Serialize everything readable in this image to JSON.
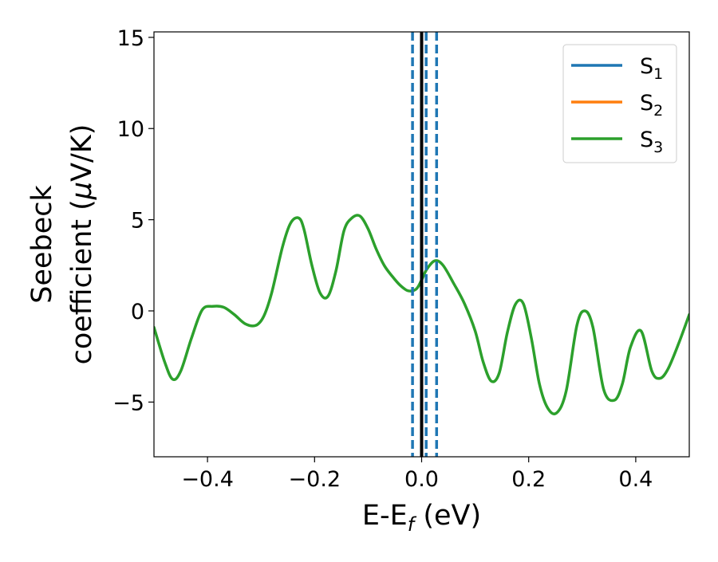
{
  "chart_data": {
    "type": "line",
    "title": "",
    "xlabel": {
      "main": "E-E",
      "sub": "f",
      "rest": " (eV)"
    },
    "ylabel_line1": "Seebeck",
    "ylabel_line2_pre": "coefficient  (",
    "ylabel_line2_mu": "μ",
    "ylabel_line2_post": "V/K)",
    "xlim": [
      -0.5,
      0.5
    ],
    "ylim": [
      -8,
      15.3
    ],
    "xticks": [
      -0.4,
      -0.2,
      0.0,
      0.2,
      0.4
    ],
    "xtick_labels": [
      "−0.4",
      "−0.2",
      "0.0",
      "0.2",
      "0.4"
    ],
    "yticks": [
      -5,
      0,
      5,
      10,
      15
    ],
    "ytick_labels": [
      "−5",
      "0",
      "5",
      "10",
      "15"
    ],
    "grid": false,
    "legend_position": "top-right",
    "series": [
      {
        "name_main": "S",
        "name_sub": "1",
        "color": "#1f77b4",
        "x": [],
        "y": []
      },
      {
        "name_main": "S",
        "name_sub": "2",
        "color": "#ff7f0e",
        "x": [],
        "y": []
      },
      {
        "name_main": "S",
        "name_sub": "3",
        "color": "#2ca02c",
        "x": [
          -0.5,
          -0.48,
          -0.465,
          -0.45,
          -0.43,
          -0.41,
          -0.39,
          -0.37,
          -0.35,
          -0.33,
          -0.31,
          -0.295,
          -0.28,
          -0.26,
          -0.245,
          -0.23,
          -0.22,
          -0.205,
          -0.19,
          -0.175,
          -0.16,
          -0.145,
          -0.13,
          -0.115,
          -0.1,
          -0.085,
          -0.07,
          -0.055,
          -0.04,
          -0.025,
          -0.01,
          0.0,
          0.01,
          0.025,
          0.04,
          0.06,
          0.08,
          0.1,
          0.115,
          0.13,
          0.145,
          0.16,
          0.175,
          0.19,
          0.205,
          0.22,
          0.235,
          0.252,
          0.27,
          0.29,
          0.305,
          0.32,
          0.34,
          0.36,
          0.375,
          0.39,
          0.41,
          0.43,
          0.445,
          0.46,
          0.48,
          0.5
        ],
        "y": [
          -0.9,
          -2.8,
          -3.75,
          -3.3,
          -1.5,
          0.05,
          0.25,
          0.2,
          -0.2,
          -0.7,
          -0.8,
          -0.3,
          1.0,
          3.5,
          4.8,
          5.1,
          4.5,
          2.5,
          1.0,
          0.8,
          2.2,
          4.4,
          5.1,
          5.2,
          4.5,
          3.4,
          2.5,
          1.9,
          1.4,
          1.1,
          1.2,
          1.7,
          2.3,
          2.75,
          2.5,
          1.5,
          0.4,
          -1.1,
          -2.8,
          -3.85,
          -3.4,
          -1.2,
          0.35,
          0.4,
          -1.5,
          -4.0,
          -5.3,
          -5.6,
          -4.4,
          -0.8,
          0.0,
          -0.9,
          -4.3,
          -4.9,
          -4.0,
          -2.0,
          -1.1,
          -3.3,
          -3.7,
          -3.2,
          -1.8,
          -0.2
        ]
      }
    ],
    "vlines": [
      {
        "x": 0.0,
        "style": "solid",
        "color": "#000000"
      },
      {
        "x": -0.017,
        "style": "dashed",
        "color": "#1f77b4"
      },
      {
        "x": 0.0085,
        "style": "dashed",
        "color": "#1f77b4"
      },
      {
        "x": 0.028,
        "style": "dashed",
        "color": "#1f77b4"
      }
    ]
  }
}
